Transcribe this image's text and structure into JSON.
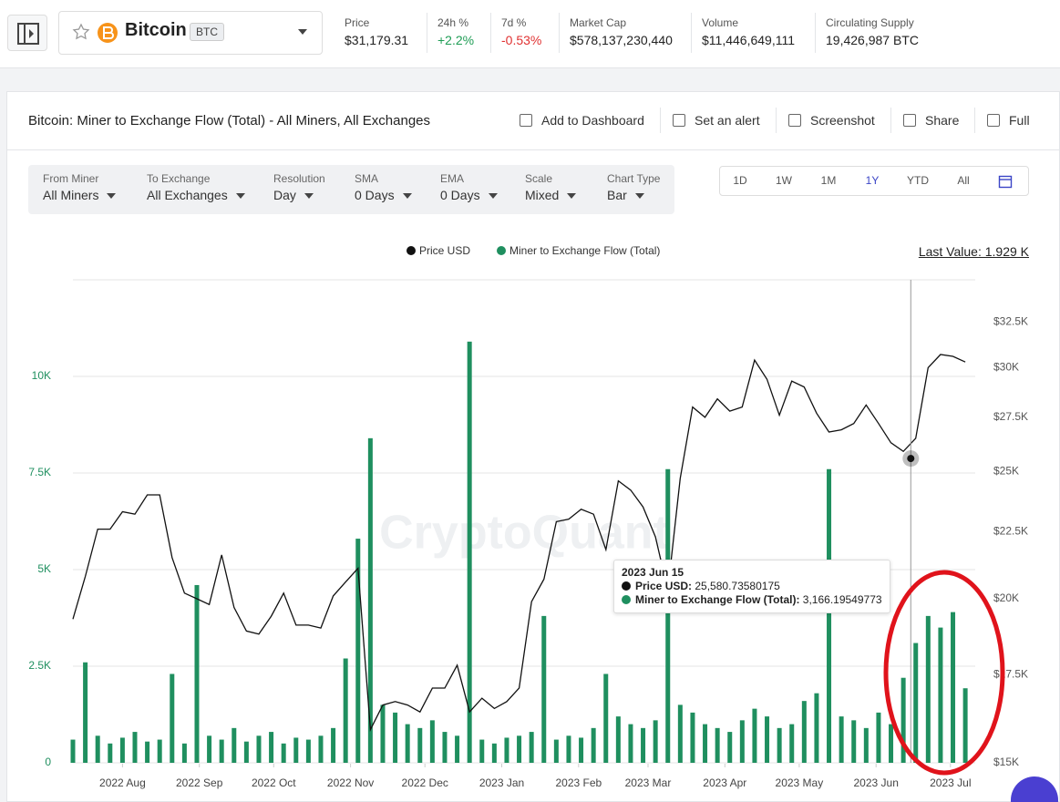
{
  "header": {
    "coin": "Bitcoin",
    "symbol": "BTC",
    "stats": [
      {
        "label": "Price",
        "value": "$31,179.31"
      },
      {
        "label": "24h %",
        "value": "+2.2%",
        "color": "#1f9d55"
      },
      {
        "label": "7d %",
        "value": "-0.53%",
        "color": "#e03131"
      },
      {
        "label": "Market Cap",
        "value": "$578,137,230,440"
      },
      {
        "label": "Volume",
        "value": "$11,446,649,111"
      },
      {
        "label": "Circulating Supply",
        "value": "19,426,987 BTC"
      }
    ]
  },
  "card": {
    "title": "Bitcoin: Miner to Exchange Flow (Total) - All Miners, All Exchanges",
    "actions": [
      "Add to Dashboard",
      "Set an alert",
      "Screenshot",
      "Share",
      "Full"
    ],
    "filters": [
      {
        "label": "From Miner",
        "value": "All Miners"
      },
      {
        "label": "To Exchange",
        "value": "All Exchanges"
      },
      {
        "label": "Resolution",
        "value": "Day"
      },
      {
        "label": "SMA",
        "value": "0 Days"
      },
      {
        "label": "EMA",
        "value": "0 Days"
      },
      {
        "label": "Scale",
        "value": "Mixed"
      },
      {
        "label": "Chart Type",
        "value": "Bar"
      }
    ],
    "ranges": [
      "1D",
      "1W",
      "1M",
      "1Y",
      "YTD",
      "All"
    ],
    "active_range": "1Y",
    "last_value": "Last Value: 1.929 K"
  },
  "chart_data": {
    "type": "combo",
    "watermark": "CryptoQuant",
    "x": [
      "2022-07-12",
      "2022-07-17",
      "2022-07-22",
      "2022-07-27",
      "2022-08-01",
      "2022-08-06",
      "2022-08-11",
      "2022-08-16",
      "2022-08-21",
      "2022-08-26",
      "2022-08-31",
      "2022-09-05",
      "2022-09-10",
      "2022-09-15",
      "2022-09-20",
      "2022-09-25",
      "2022-09-30",
      "2022-10-05",
      "2022-10-10",
      "2022-10-15",
      "2022-10-20",
      "2022-10-25",
      "2022-10-30",
      "2022-11-04",
      "2022-11-09",
      "2022-11-14",
      "2022-11-19",
      "2022-11-24",
      "2022-11-29",
      "2022-12-04",
      "2022-12-09",
      "2022-12-14",
      "2022-12-19",
      "2022-12-24",
      "2022-12-29",
      "2023-01-03",
      "2023-01-08",
      "2023-01-13",
      "2023-01-18",
      "2023-01-23",
      "2023-01-28",
      "2023-02-02",
      "2023-02-07",
      "2023-02-12",
      "2023-02-17",
      "2023-02-22",
      "2023-02-27",
      "2023-03-04",
      "2023-03-09",
      "2023-03-14",
      "2023-03-19",
      "2023-03-24",
      "2023-03-29",
      "2023-04-03",
      "2023-04-08",
      "2023-04-13",
      "2023-04-18",
      "2023-04-23",
      "2023-04-28",
      "2023-05-03",
      "2023-05-08",
      "2023-05-13",
      "2023-05-18",
      "2023-05-23",
      "2023-05-28",
      "2023-06-02",
      "2023-06-07",
      "2023-06-12",
      "2023-06-17",
      "2023-06-22",
      "2023-06-27",
      "2023-07-02",
      "2023-07-07"
    ],
    "series": [
      {
        "name": "Price USD",
        "type": "line",
        "axis": "y2",
        "color": "#111111",
        "values": [
          19300,
          20800,
          22600,
          22600,
          23300,
          23200,
          24000,
          24000,
          21500,
          20200,
          20000,
          19800,
          21600,
          19700,
          18900,
          18800,
          19400,
          20200,
          19100,
          19100,
          19000,
          20100,
          20600,
          21100,
          15900,
          16600,
          16700,
          16600,
          16400,
          17100,
          17100,
          17800,
          16400,
          16800,
          16500,
          16700,
          17100,
          19900,
          20700,
          22900,
          23000,
          23400,
          23200,
          21800,
          24600,
          24200,
          23500,
          22300,
          20300,
          24700,
          28000,
          27500,
          28400,
          27800,
          28000,
          30400,
          29400,
          27600,
          29300,
          29000,
          27700,
          26800,
          26900,
          27200,
          28100,
          27200,
          26300,
          25900,
          26500,
          30000,
          30700,
          30600,
          30300
        ]
      },
      {
        "name": "Miner to Exchange Flow (Total)",
        "type": "bar",
        "color": "#1f8f5f",
        "values": [
          600,
          2600,
          700,
          500,
          650,
          800,
          550,
          600,
          2300,
          500,
          4600,
          700,
          600,
          900,
          550,
          700,
          800,
          500,
          650,
          600,
          700,
          900,
          2700,
          5800,
          8400,
          1500,
          1300,
          1000,
          900,
          1100,
          800,
          700,
          10900,
          600,
          500,
          650,
          700,
          800,
          3800,
          600,
          700,
          650,
          900,
          2300,
          1200,
          1000,
          900,
          1100,
          7600,
          1500,
          1300,
          1000,
          900,
          800,
          1100,
          1400,
          1200,
          900,
          1000,
          1600,
          1800,
          7600,
          1200,
          1100,
          900,
          1300,
          1000,
          2200,
          3100,
          3800,
          3500,
          3900,
          1929
        ]
      }
    ],
    "xlim": [
      "2022-07-12",
      "2023-07-11"
    ],
    "xticks": [
      {
        "value": "2022-08-01",
        "label": "2022 Aug"
      },
      {
        "value": "2022-09-01",
        "label": "2022 Sep"
      },
      {
        "value": "2022-10-01",
        "label": "2022 Oct"
      },
      {
        "value": "2022-11-01",
        "label": "2022 Nov"
      },
      {
        "value": "2022-12-01",
        "label": "2022 Dec"
      },
      {
        "value": "2023-01-01",
        "label": "2023 Jan"
      },
      {
        "value": "2023-02-01",
        "label": "2023 Feb"
      },
      {
        "value": "2023-03-01",
        "label": "2023 Mar"
      },
      {
        "value": "2023-04-01",
        "label": "2023 Apr"
      },
      {
        "value": "2023-05-01",
        "label": "2023 May"
      },
      {
        "value": "2023-06-01",
        "label": "2023 Jun"
      },
      {
        "value": "2023-07-01",
        "label": "2023 Jul"
      }
    ],
    "ylim": [
      0,
      12500
    ],
    "yticks": [
      0,
      {
        "value": 2500,
        "label": "2.5K"
      },
      {
        "value": 5000,
        "label": "5K"
      },
      {
        "value": 7500,
        "label": "7.5K"
      },
      {
        "value": 10000,
        "label": "10K"
      }
    ],
    "y2lim": [
      15000,
      35000
    ],
    "y2log": true,
    "y2ticks": [
      {
        "value": 15000,
        "label": "$15K"
      },
      {
        "value": 17500,
        "label": "$17.5K"
      },
      {
        "value": 20000,
        "label": "$20K"
      },
      {
        "value": 22500,
        "label": "$22.5K"
      },
      {
        "value": 25000,
        "label": "$25K"
      },
      {
        "value": 27500,
        "label": "$27.5K"
      },
      {
        "value": 30000,
        "label": "$30K"
      },
      {
        "value": 32500,
        "label": "$32.5K"
      }
    ],
    "grid": true,
    "tooltip": {
      "x": "2023-06-15",
      "date": "2023 Jun 15",
      "price": 25580.73580175,
      "rows": [
        {
          "name": "Price USD",
          "value": "25,580.73580175"
        },
        {
          "name": "Miner to Exchange Flow (Total)",
          "value": "3,166.19549773"
        }
      ]
    }
  }
}
